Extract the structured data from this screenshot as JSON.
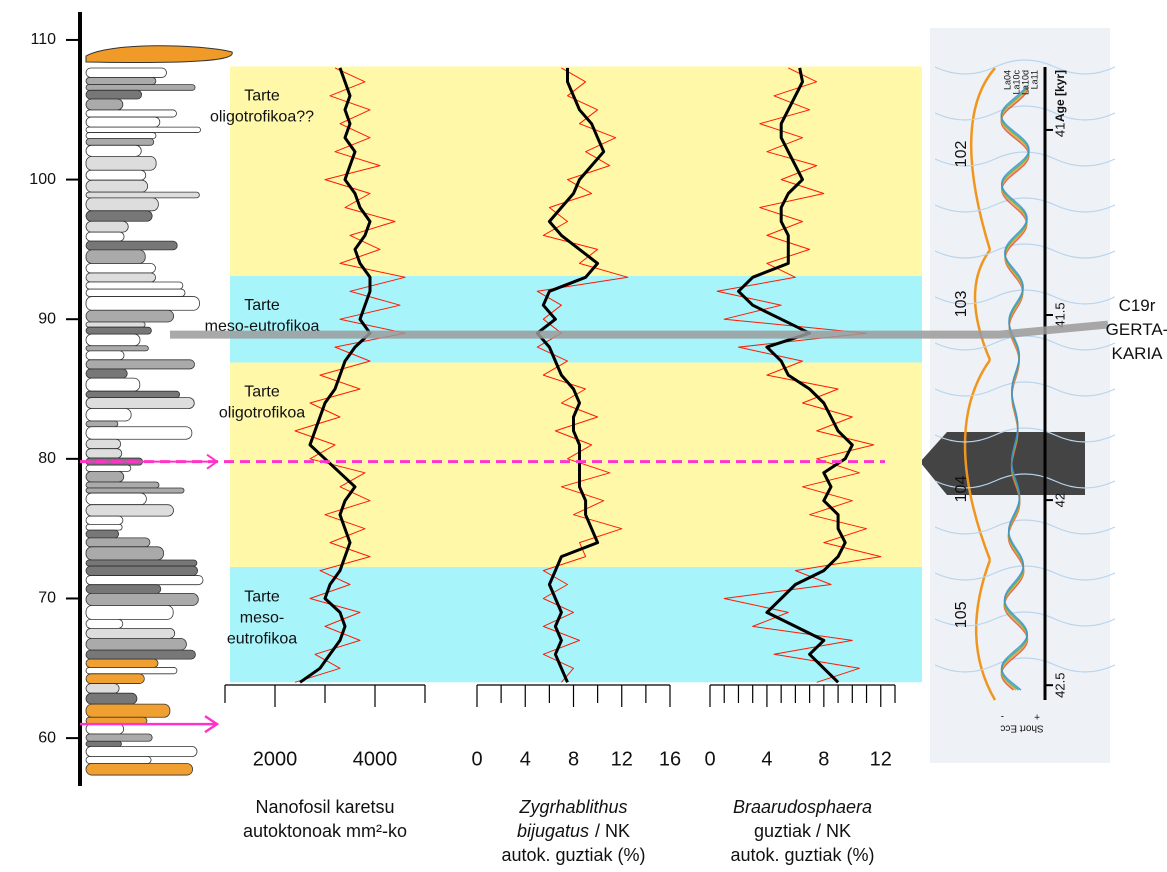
{
  "depth_axis": {
    "ylim": [
      57,
      111.5
    ],
    "yticks": [
      60,
      70,
      80,
      90,
      100,
      110
    ]
  },
  "bands": [
    {
      "from": 93.1,
      "to": 108.1,
      "color": "#fff8a8",
      "label": [
        "Tarte",
        "oligotrofikoa??"
      ]
    },
    {
      "from": 86.9,
      "to": 93.1,
      "color": "#a8f4fb",
      "label": [
        "Tarte",
        "meso-eutrofikoa"
      ]
    },
    {
      "from": 72.25,
      "to": 86.9,
      "color": "#fff8a8",
      "label": [
        "Tarte",
        "oligotrofikoa"
      ]
    },
    {
      "from": 64.0,
      "to": 72.25,
      "color": "#a8f4fb",
      "label": [
        "Tarte",
        "meso-",
        "eutrofikoa"
      ]
    }
  ],
  "events": [
    {
      "depth": 88.9,
      "color": "#9a9a9a",
      "style": "solid",
      "label": [
        "C19r",
        "GERTA-",
        "KARIA"
      ]
    },
    {
      "depth": 79.8,
      "color": "#ff33cc",
      "style": "dashed"
    },
    {
      "depth": 61.0,
      "color": "#ff33cc",
      "style": "arrow"
    }
  ],
  "chart_data": [
    {
      "type": "line",
      "xlim": [
        1000,
        5000
      ],
      "xticks": [
        2000,
        4000
      ],
      "xminor": [
        1000,
        3000,
        5000
      ],
      "x_label": [
        "Nanofosil karetsu",
        "autoktonoak mm²-ko"
      ],
      "y": [
        108,
        107,
        106,
        105,
        104,
        103,
        102,
        101,
        100,
        99,
        98,
        97,
        96,
        95,
        94,
        93,
        92,
        91,
        90,
        89,
        88,
        87,
        86,
        85,
        84,
        83,
        82,
        81,
        80,
        79,
        78,
        77,
        76,
        75,
        74,
        73,
        72,
        71,
        70,
        69,
        68,
        67,
        66,
        65,
        64
      ],
      "series": [
        {
          "color": "#ff1a00",
          "width": 1,
          "values": [
            3200,
            3800,
            3100,
            3900,
            3300,
            3900,
            3200,
            4100,
            3000,
            3900,
            3400,
            4400,
            3500,
            4100,
            3300,
            4600,
            3500,
            4500,
            3300,
            4600,
            3200,
            3900,
            2900,
            3700,
            2700,
            3300,
            2400,
            3200,
            2700,
            3800,
            3300,
            3900,
            3000,
            3800,
            3100,
            3900,
            2900,
            3500,
            2700,
            3700,
            3000,
            3700,
            2800,
            3300,
            2400
          ]
        },
        {
          "color": "#000000",
          "width": 3,
          "values": [
            3300,
            3400,
            3500,
            3400,
            3500,
            3400,
            3600,
            3500,
            3400,
            3600,
            3700,
            3900,
            3800,
            3600,
            3700,
            3900,
            3900,
            3800,
            3700,
            3900,
            3600,
            3400,
            3300,
            3200,
            3000,
            2900,
            2800,
            2700,
            3000,
            3300,
            3600,
            3400,
            3300,
            3400,
            3500,
            3400,
            3300,
            3100,
            3000,
            3300,
            3400,
            3300,
            3100,
            2900,
            2500
          ]
        }
      ]
    },
    {
      "type": "line",
      "xlim": [
        0,
        16
      ],
      "xticks": [
        0,
        4,
        8,
        12,
        16
      ],
      "xminor": [
        2,
        6,
        10,
        14
      ],
      "x_label": [
        {
          "italic": "Zygrhablithus"
        },
        {
          "italic": "bijugatus",
          "text": "/ NK"
        },
        "autok. guztiak (%)"
      ],
      "y": [
        108,
        107,
        106,
        105,
        104,
        103,
        102,
        101,
        100,
        99,
        98,
        97,
        96,
        95,
        94,
        93,
        92,
        91,
        90,
        89,
        88,
        87,
        86,
        85,
        84,
        83,
        82,
        81,
        80,
        79,
        78,
        77,
        76,
        75,
        74,
        73,
        72,
        71,
        70,
        69,
        68,
        67,
        66,
        65,
        64
      ],
      "series": [
        {
          "color": "#ff1a00",
          "width": 1,
          "values": [
            7,
            9,
            7.5,
            10,
            8.5,
            11.5,
            9,
            11,
            7.5,
            9.5,
            6,
            7.5,
            5.5,
            10,
            8.5,
            12.5,
            5,
            7,
            5.5,
            7,
            5,
            7.5,
            5.5,
            9,
            7,
            10,
            6.5,
            9.5,
            7.5,
            11,
            7,
            10.5,
            8,
            12,
            8.5,
            9,
            5.5,
            7.5,
            5.5,
            8,
            5.5,
            8.5,
            5.5,
            8,
            7
          ]
        },
        {
          "color": "#000000",
          "width": 3,
          "values": [
            7.5,
            7.5,
            8,
            8.5,
            9.5,
            10,
            10.5,
            9.5,
            8.5,
            8,
            7,
            6,
            7,
            8.5,
            10,
            9,
            6,
            5.5,
            6.5,
            5,
            6,
            6.5,
            7,
            8,
            8.5,
            8,
            8,
            8.5,
            8.5,
            8.5,
            8.5,
            9,
            9,
            9.5,
            10,
            7,
            6.5,
            6,
            6.5,
            7,
            6.5,
            7,
            6.5,
            7,
            7.5
          ]
        }
      ]
    },
    {
      "type": "line",
      "xlim": [
        0,
        13
      ],
      "xticks": [
        0,
        4,
        8,
        12
      ],
      "xminor": [
        1,
        2,
        3,
        5,
        6,
        7,
        9,
        10,
        11,
        13
      ],
      "x_label": [
        {
          "italic": "Braarudosphaera"
        },
        "guztiak / NK",
        "autok. guztiak (%)"
      ],
      "y": [
        108,
        107,
        106,
        105,
        104,
        103,
        102,
        101,
        100,
        99,
        98,
        97,
        96,
        95,
        94,
        93,
        92,
        91,
        90,
        89,
        88,
        87,
        86,
        85,
        84,
        83,
        82,
        81,
        80,
        79,
        78,
        77,
        76,
        75,
        74,
        73,
        72,
        71,
        70,
        69,
        68,
        67,
        66,
        65,
        64
      ],
      "series": [
        {
          "color": "#ff1a00",
          "width": 1,
          "values": [
            5.5,
            7.5,
            4.5,
            7,
            3.5,
            6.5,
            4,
            7.5,
            5,
            8,
            3.5,
            6.5,
            4,
            7,
            4,
            6,
            0.5,
            5,
            1,
            11,
            2,
            6.5,
            4,
            9,
            6.5,
            10,
            7.5,
            11.5,
            7.5,
            10.5,
            6.5,
            10,
            7,
            11,
            8,
            12,
            6,
            8.5,
            1,
            5.5,
            3,
            10,
            4.5,
            10.5,
            7.5
          ]
        },
        {
          "color": "#000000",
          "width": 3,
          "values": [
            6.3,
            6.5,
            6,
            5.5,
            5,
            5,
            5.5,
            6,
            6.5,
            5.5,
            5,
            5,
            5.5,
            5.5,
            5.5,
            3,
            2,
            3,
            5,
            7,
            4,
            5,
            5.5,
            7,
            8,
            8.5,
            9,
            10,
            9.5,
            8,
            8.5,
            8,
            9,
            9,
            9.5,
            9,
            8,
            6,
            5,
            4,
            6,
            8,
            7,
            8,
            9
          ]
        }
      ]
    },
    {
      "type": "astro",
      "ylim": [
        40.83,
        42.54
      ],
      "yticks": [
        41,
        41.5,
        42,
        42.5
      ],
      "y_label": "Age [kyr]",
      "legend": [
        {
          "name": "La04",
          "color": "#e0503c"
        },
        {
          "name": "La10c",
          "color": "#e8a030"
        },
        {
          "name": "La10d",
          "color": "#3cae5a"
        },
        {
          "name": "La11",
          "color": "#3a8fd8"
        }
      ],
      "cycles": [
        {
          "label": "102",
          "age": 41.065
        },
        {
          "label": "103",
          "age": 41.47
        },
        {
          "label": "104",
          "age": 41.97
        },
        {
          "label": "105",
          "age": 42.31
        }
      ],
      "x_label": "Short Ecc",
      "x_ends": [
        "+",
        "-"
      ]
    }
  ]
}
